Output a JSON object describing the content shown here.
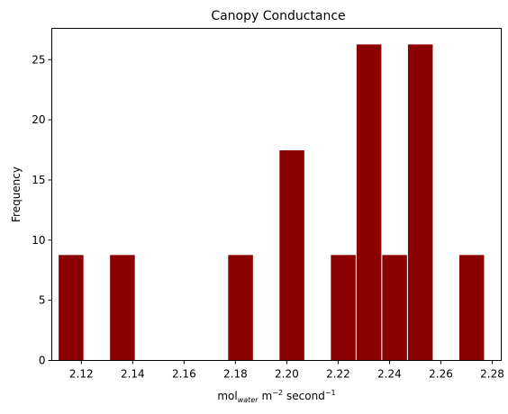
{
  "chart_data": {
    "type": "bar",
    "title": "Canopy Conductance",
    "xlabel": {
      "base": "mol",
      "sub": "water",
      "unit_m": "m",
      "exp_m": "−2",
      "unit_s": "second",
      "exp_s": "−1"
    },
    "ylabel": "Frequency",
    "xlim": [
      2.1085,
      2.2835
    ],
    "ylim": [
      0,
      27.6
    ],
    "xticks": [
      2.12,
      2.14,
      2.16,
      2.18,
      2.2,
      2.22,
      2.24,
      2.26,
      2.28
    ],
    "xtick_labels": [
      "2.12",
      "2.14",
      "2.16",
      "2.18",
      "2.20",
      "2.22",
      "2.24",
      "2.26",
      "2.28"
    ],
    "yticks": [
      0,
      5,
      10,
      15,
      20,
      25
    ],
    "ytick_labels": [
      "0",
      "5",
      "10",
      "15",
      "20",
      "25"
    ],
    "bar_width": 0.01,
    "bar_color": "#8b0000",
    "bar_edge_color": "#ffffff",
    "bars": [
      {
        "x": 2.116,
        "value": 8.8
      },
      {
        "x": 2.136,
        "value": 8.8
      },
      {
        "x": 2.182,
        "value": 8.8
      },
      {
        "x": 2.202,
        "value": 17.5
      },
      {
        "x": 2.222,
        "value": 8.8
      },
      {
        "x": 2.232,
        "value": 26.3
      },
      {
        "x": 2.242,
        "value": 8.8
      },
      {
        "x": 2.252,
        "value": 26.3
      },
      {
        "x": 2.272,
        "value": 8.8
      }
    ],
    "grid": false,
    "legend": "none"
  }
}
